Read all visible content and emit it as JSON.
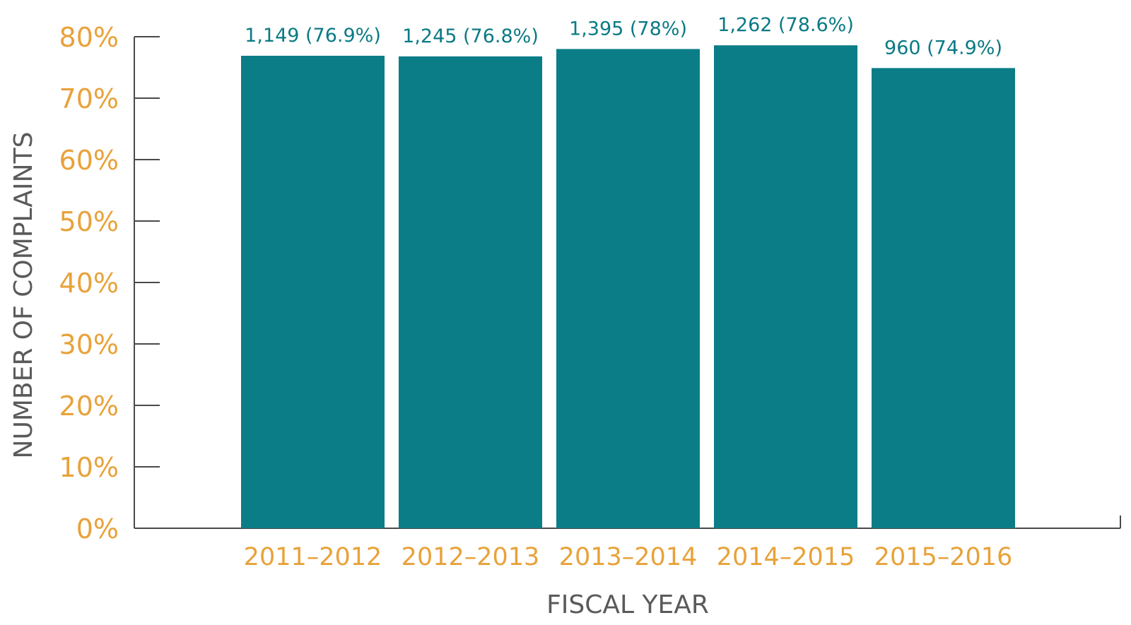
{
  "chart_data": {
    "type": "bar",
    "title": "",
    "xlabel": "FISCAL YEAR",
    "ylabel": "NUMBER OF COMPLAINTS",
    "categories": [
      "2011–2012",
      "2012–2013",
      "2013–2014",
      "2014–2015",
      "2015–2016"
    ],
    "values": [
      76.9,
      76.8,
      78,
      78.6,
      74.9
    ],
    "counts": [
      1149,
      1245,
      1395,
      1262,
      960
    ],
    "data_labels": [
      "1,149 (76.9%)",
      "1,245 (76.8%)",
      "1,395 (78%)",
      "1,262 (78.6%)",
      "960 (74.9%)"
    ],
    "y_ticks": [
      "0%",
      "10%",
      "20%",
      "30%",
      "40%",
      "50%",
      "60%",
      "70%",
      "80%"
    ],
    "ylim": [
      0,
      80
    ],
    "grid": false,
    "legend": "none",
    "colors": {
      "bar": "#0a7d87",
      "data_label": "#0a7a85",
      "tick_label": "#e8a23a",
      "axis_title": "#5a5a5a",
      "axis_line": "#4a4a4a"
    }
  }
}
